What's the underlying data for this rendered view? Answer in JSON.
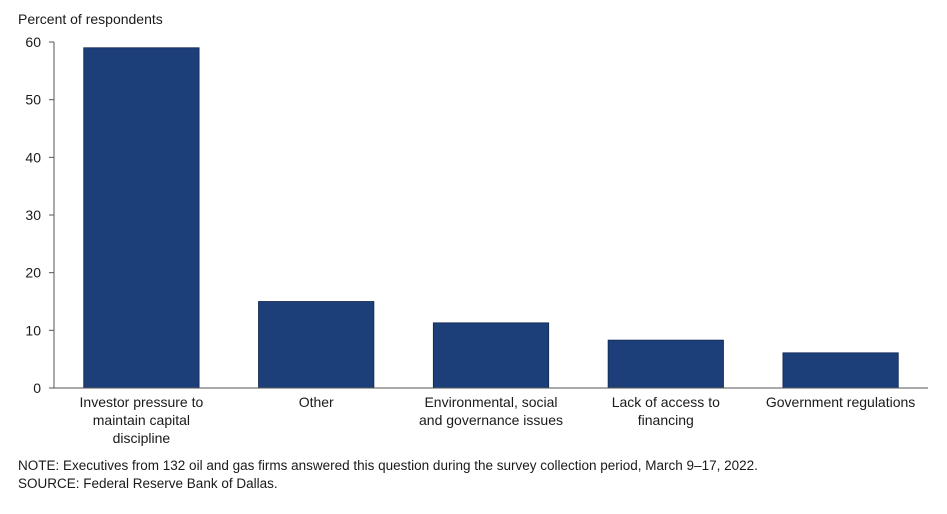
{
  "chart_data": {
    "type": "bar",
    "ylabel": "Percent of respondents",
    "categories": [
      [
        "Investor pressure to",
        "maintain capital",
        "discipline"
      ],
      [
        "Other"
      ],
      [
        "Environmental, social",
        "and governance issues"
      ],
      [
        "Lack of access to",
        "financing"
      ],
      [
        "Government regulations"
      ]
    ],
    "values": [
      59,
      15,
      11.3,
      8.3,
      6.1
    ],
    "ylim": [
      0,
      60
    ],
    "yticks": [
      0,
      10,
      20,
      30,
      40,
      50,
      60
    ],
    "grid": false,
    "bar_color": "#1c3f7a",
    "legend": "none"
  },
  "notes": {
    "note": "NOTE:  Executives from 132 oil and gas firms answered this question during the survey collection period, March 9–17, 2022.",
    "source": "SOURCE:  Federal Reserve Bank of Dallas."
  }
}
